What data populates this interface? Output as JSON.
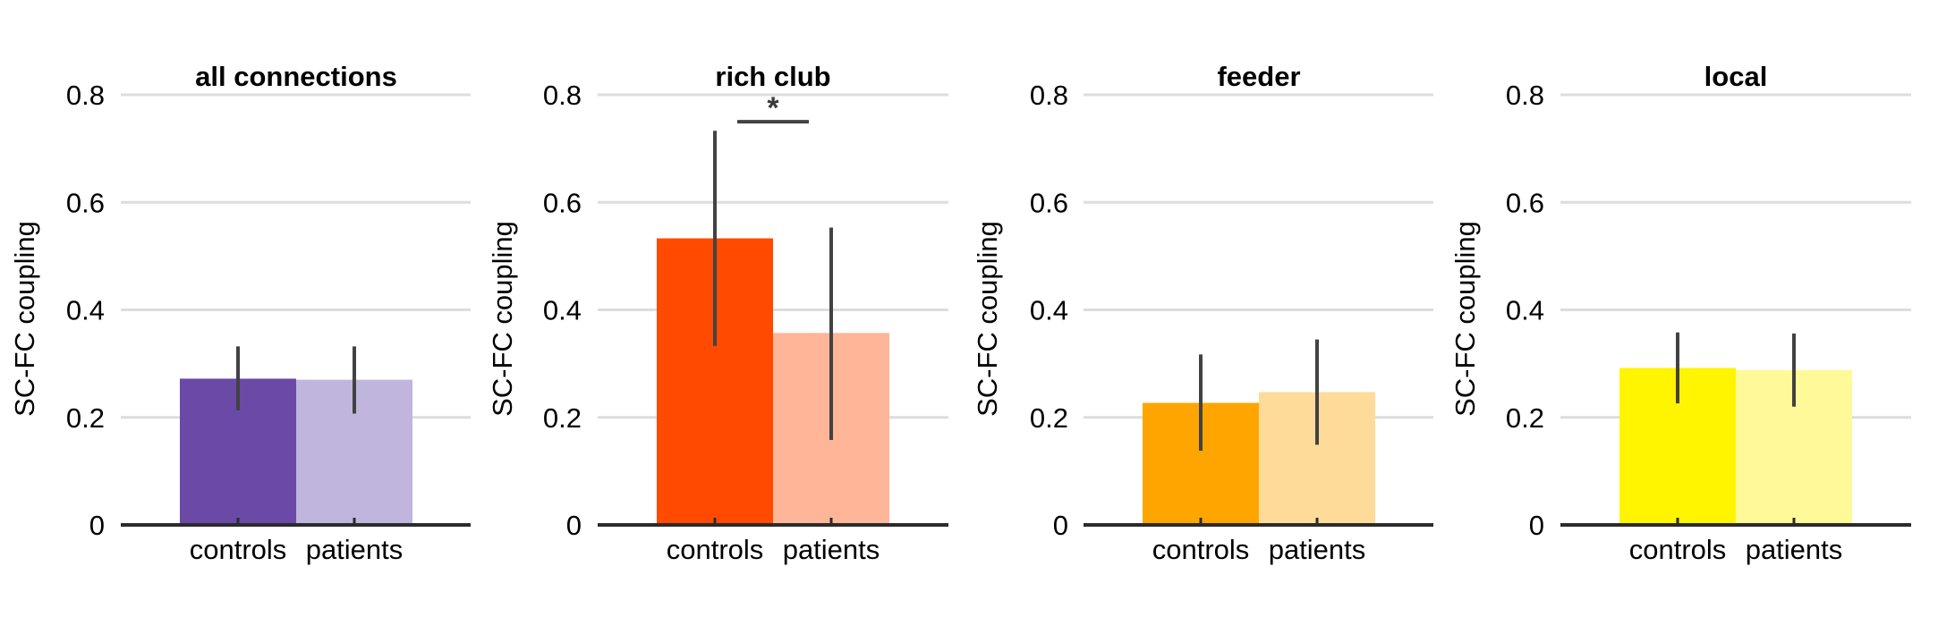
{
  "chart_data": [
    {
      "type": "bar",
      "title": "all connections",
      "ylabel": "SC-FC coupling",
      "xlabel": "",
      "ylim": [
        0,
        0.8
      ],
      "yticks": [
        0,
        0.2,
        0.4,
        0.6,
        0.8
      ],
      "ytick_labels": [
        "0",
        "0.2",
        "0.4",
        "0.6",
        "0.8"
      ],
      "grid": true,
      "categories": [
        "controls",
        "patients"
      ],
      "values": [
        0.272,
        0.27
      ],
      "error_low": [
        0.213,
        0.207
      ],
      "error_high": [
        0.332,
        0.332
      ],
      "colors": [
        "#6a4aa6",
        "#c0b5dc"
      ],
      "significance": null
    },
    {
      "type": "bar",
      "title": "rich club",
      "ylabel": "SC-FC coupling",
      "xlabel": "",
      "ylim": [
        0,
        0.8
      ],
      "yticks": [
        0,
        0.2,
        0.4,
        0.6,
        0.8
      ],
      "ytick_labels": [
        "0",
        "0.2",
        "0.4",
        "0.6",
        "0.8"
      ],
      "grid": true,
      "categories": [
        "controls",
        "patients"
      ],
      "values": [
        0.533,
        0.357
      ],
      "error_low": [
        0.333,
        0.158
      ],
      "error_high": [
        0.733,
        0.553
      ],
      "colors": [
        "#ff4a00",
        "#ffb597"
      ],
      "significance": {
        "label": "*",
        "y": 0.75
      }
    },
    {
      "type": "bar",
      "title": "feeder",
      "ylabel": "SC-FC coupling",
      "xlabel": "",
      "ylim": [
        0,
        0.8
      ],
      "yticks": [
        0,
        0.2,
        0.4,
        0.6,
        0.8
      ],
      "ytick_labels": [
        "0",
        "0.2",
        "0.4",
        "0.6",
        "0.8"
      ],
      "grid": true,
      "categories": [
        "controls",
        "patients"
      ],
      "values": [
        0.227,
        0.247
      ],
      "error_low": [
        0.138,
        0.149
      ],
      "error_high": [
        0.317,
        0.345
      ],
      "colors": [
        "#ffa500",
        "#ffdb99"
      ],
      "significance": null
    },
    {
      "type": "bar",
      "title": "local",
      "ylabel": "SC-FC coupling",
      "xlabel": "",
      "ylim": [
        0,
        0.8
      ],
      "yticks": [
        0,
        0.2,
        0.4,
        0.6,
        0.8
      ],
      "ytick_labels": [
        "0",
        "0.2",
        "0.4",
        "0.6",
        "0.8"
      ],
      "grid": true,
      "categories": [
        "controls",
        "patients"
      ],
      "values": [
        0.292,
        0.288
      ],
      "error_low": [
        0.226,
        0.22
      ],
      "error_high": [
        0.358,
        0.356
      ],
      "colors": [
        "#fff500",
        "#fff997"
      ],
      "significance": null
    }
  ],
  "style": {
    "grid_color": "#dddddd",
    "axis_color": "#2b2b2b",
    "error_bar_color": "#424242"
  }
}
